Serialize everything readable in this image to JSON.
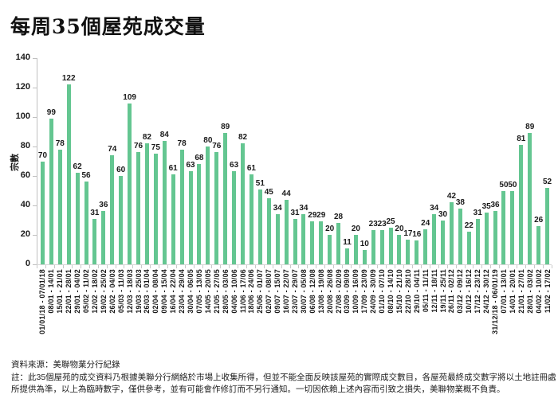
{
  "title": "每周35個屋苑成交量",
  "chart_data": {
    "type": "bar",
    "title": "每周35個屋苑成交量",
    "xlabel": "",
    "ylabel": "宗數",
    "ylim": [
      0,
      140
    ],
    "yticks": [
      0,
      20,
      40,
      60,
      80,
      100,
      120,
      140
    ],
    "grid": false,
    "legend": "none",
    "bar_color": "#64C691",
    "axis_color": "#c0c0c0",
    "categories": [
      "01/01/18 - 07/01/18",
      "08/01 - 14/01",
      "15/01 - 21/01",
      "22/01 - 28/01",
      "29/01 - 04/02",
      "05/02 - 11/02",
      "12/02 - 18/02",
      "19/02 - 25/02",
      "26/02 - 04/03",
      "05/03 - 11/03",
      "12/03 - 18/03",
      "19/03 - 25/03",
      "26/03 - 01/04",
      "02/04 - 08/04",
      "09/04 - 15/04",
      "16/04 - 22/04",
      "23/04 - 29/04",
      "30/04 - 06/05",
      "07/05 - 13/05",
      "14/05 - 20/05",
      "21/05 - 27/05",
      "28/05 - 03/06",
      "04/06 - 10/06",
      "11/06 - 17/06",
      "18/06 - 24/06",
      "25/06 - 01/07",
      "02/07 - 08/07",
      "09/07 - 15/07",
      "16/07 - 22/07",
      "23/07 - 29/07",
      "30/07 - 05/08",
      "06/08 - 12/08",
      "13/08 - 19/08",
      "20/08 - 26/08",
      "27/08 - 02/09",
      "03/09 - 09/09",
      "10/09 - 16/09",
      "17/09 - 23/09",
      "24/09 - 30/09",
      "01/10 - 07/10",
      "08/10 - 14/10",
      "15/10 - 21/10",
      "22/10 - 28/10",
      "29/10 - 04/11",
      "05/11 - 11/11",
      "12/11 - 18/11",
      "19/11 - 25/11",
      "26/11 - 02/12",
      "03/12 - 09/12",
      "10/12 - 16/12",
      "17/12 - 23/12",
      "24/12 - 30/12",
      "31/12/18 - 06/01/19",
      "07/01 - 13/01",
      "14/01 - 20/01",
      "21/01 - 27/01",
      "28/01 - 03/02",
      "04/02 - 10/02",
      "11/02 - 17/02"
    ],
    "values": [
      70,
      99,
      78,
      122,
      62,
      56,
      31,
      36,
      74,
      60,
      109,
      76,
      82,
      75,
      84,
      61,
      78,
      63,
      68,
      80,
      76,
      89,
      63,
      82,
      61,
      51,
      45,
      34,
      44,
      31,
      34,
      29,
      29,
      20,
      28,
      11,
      20,
      10,
      23,
      23,
      25,
      20,
      17,
      16,
      24,
      34,
      30,
      42,
      38,
      22,
      31,
      35,
      36,
      50,
      50,
      81,
      89,
      26,
      52
    ]
  },
  "footer": {
    "source": "資料來源：美聯物業分行紀錄",
    "note_lines": [
      "註：此35個屋苑的成交資料乃根據美聯分行網絡於市場上收集所得，但並不能全面反映該屋苑的實際成交數目，各屋苑最終成交數字將以土地註冊處",
      "所提供為準，以上為臨時數字，僅供參考，並有可能會作修訂而不另行通知。一切因依賴上述內容而引致之損失，美聯物業概不負責。"
    ]
  }
}
